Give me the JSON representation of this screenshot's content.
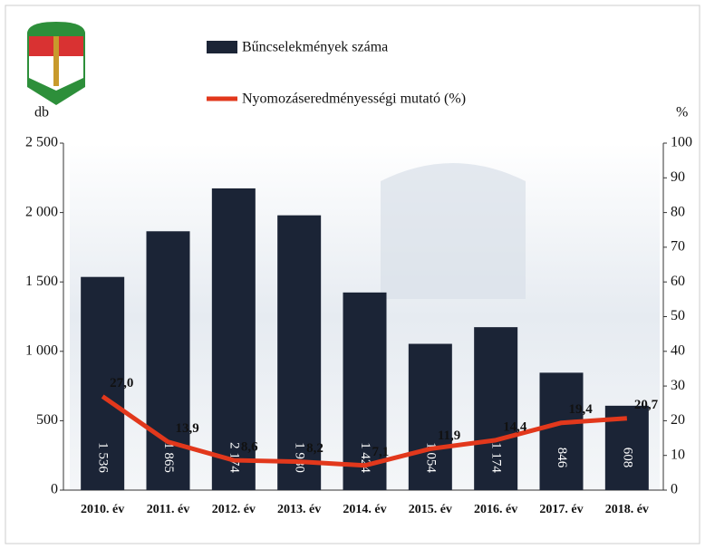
{
  "chart_data": {
    "type": "bar",
    "categories": [
      "2010. év",
      "2011. év",
      "2012. év",
      "2013. év",
      "2014. év",
      "2015. év",
      "2016. év",
      "2017. év",
      "2018. év"
    ],
    "series": [
      {
        "name": "Bűncselekmények száma",
        "type": "bar",
        "color": "#1b2436",
        "values": [
          1536,
          1865,
          2174,
          1980,
          1424,
          1054,
          1174,
          846,
          608
        ],
        "value_labels": [
          "1 536",
          "1 865",
          "2 174",
          "1 980",
          "1 424",
          "1 054",
          "1 174",
          "846",
          "608"
        ]
      },
      {
        "name": "Nyomozáseredményességi mutató (%)",
        "type": "line",
        "axis": "y2",
        "color": "#e2381c",
        "values": [
          27.0,
          13.9,
          8.6,
          8.2,
          7.1,
          11.9,
          14.4,
          19.4,
          20.7
        ],
        "value_labels": [
          "27,0",
          "13,9",
          "8,6",
          "8,2",
          "7,1",
          "11,9",
          "14,4",
          "19,4",
          "20,7"
        ]
      }
    ],
    "ylabel": "db",
    "y2label": "%",
    "ylim": [
      0,
      2500
    ],
    "yticks": [
      0,
      500,
      {
        "value": 1000,
        "label": "1 000"
      },
      {
        "value": 1500,
        "label": "1 500"
      },
      {
        "value": 2000,
        "label": "2 000"
      },
      {
        "value": 2500,
        "label": "2 500"
      }
    ],
    "y2lim": [
      0,
      100
    ],
    "y2ticks": [
      0,
      10,
      20,
      30,
      40,
      50,
      60,
      70,
      80,
      90,
      100
    ]
  }
}
